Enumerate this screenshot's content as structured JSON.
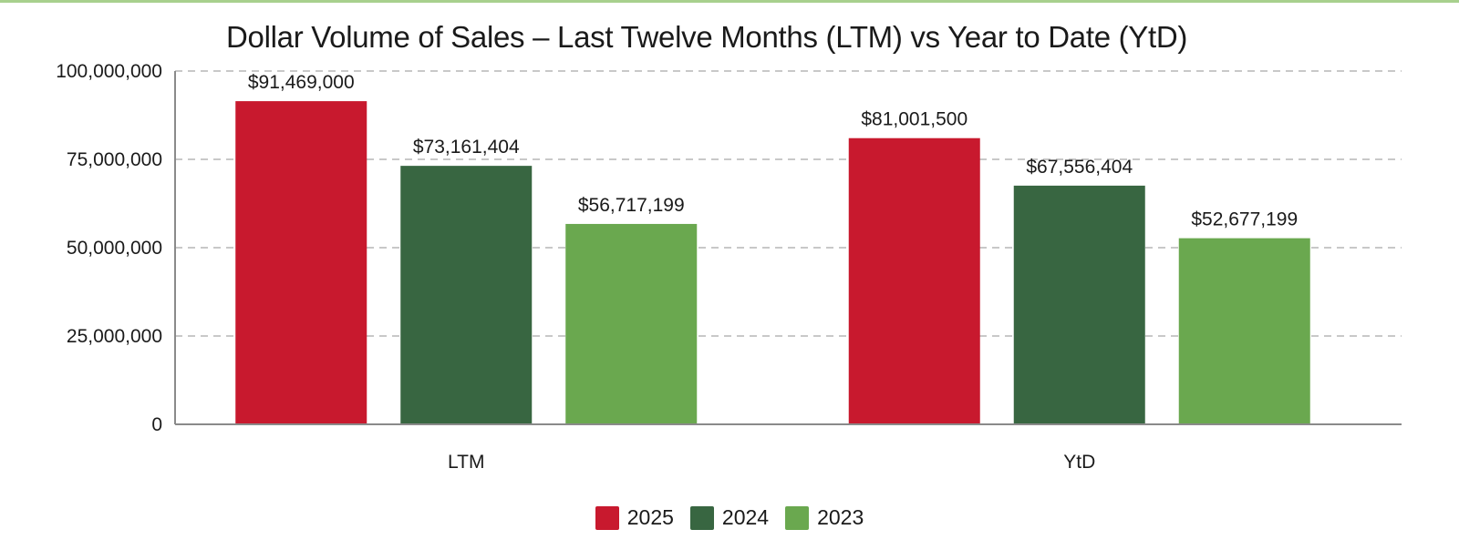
{
  "chart_data": {
    "type": "bar",
    "title": "Dollar Volume of Sales – Last Twelve Months (LTM) vs Year to Date (YtD)",
    "xlabel": "",
    "ylabel": "",
    "categories": [
      "LTM",
      "YtD"
    ],
    "ylim": [
      0,
      100000000
    ],
    "yticks": [
      0,
      25000000,
      50000000,
      75000000,
      100000000
    ],
    "ytick_labels": [
      "0",
      "25,000,000",
      "50,000,000",
      "75,000,000",
      "100,000,000"
    ],
    "grid": true,
    "legend_position": "bottom-center",
    "series": [
      {
        "name": "2025",
        "color": "#c8192e",
        "values": [
          91469000,
          81001500
        ],
        "labels": [
          "$91,469,000",
          "$81,001,500"
        ]
      },
      {
        "name": "2024",
        "color": "#386641",
        "values": [
          73161404,
          67556404
        ],
        "labels": [
          "$73,161,404",
          "$67,556,404"
        ]
      },
      {
        "name": "2023",
        "color": "#6aa84f",
        "values": [
          56717199,
          52677199
        ],
        "labels": [
          "$56,717,199",
          "$52,677,199"
        ]
      }
    ]
  }
}
